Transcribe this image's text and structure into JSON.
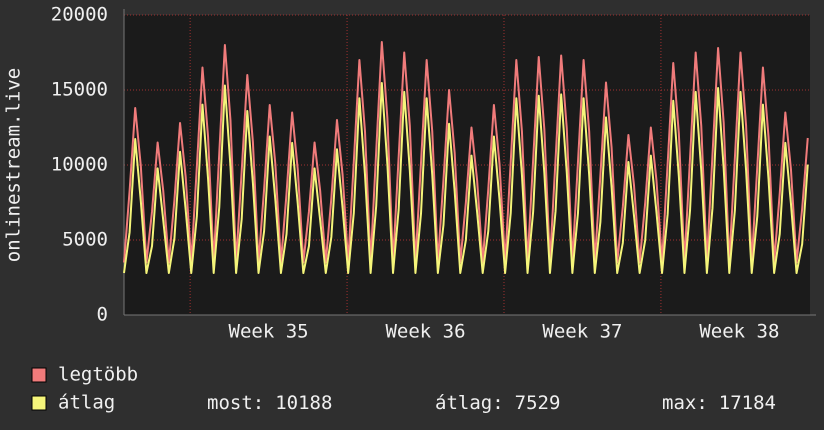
{
  "chart_data": {
    "type": "line",
    "ylabel": "onlinestream.live",
    "xlim": [
      0,
      30.6
    ],
    "ylim": [
      0,
      20000
    ],
    "yticks": [
      0,
      5000,
      10000,
      15000,
      20000
    ],
    "xticks": [
      {
        "value": 2.95,
        "label": "Week 35"
      },
      {
        "value": 9.95,
        "label": "Week 36"
      },
      {
        "value": 16.95,
        "label": "Week 37"
      },
      {
        "value": 23.95,
        "label": "Week 38"
      }
    ],
    "grid": true,
    "x": [
      0,
      0.25,
      0.5,
      0.75,
      1,
      1.25,
      1.5,
      1.75,
      2,
      2.25,
      2.5,
      2.75,
      3,
      3.25,
      3.5,
      3.75,
      4,
      4.25,
      4.5,
      4.75,
      5,
      5.25,
      5.5,
      5.75,
      6,
      6.25,
      6.5,
      6.75,
      7,
      7.25,
      7.5,
      7.75,
      8,
      8.25,
      8.5,
      8.75,
      9,
      9.25,
      9.5,
      9.75,
      10,
      10.25,
      10.5,
      10.75,
      11,
      11.25,
      11.5,
      11.75,
      12,
      12.25,
      12.5,
      12.75,
      13,
      13.25,
      13.5,
      13.75,
      14,
      14.25,
      14.5,
      14.75,
      15,
      15.25,
      15.5,
      15.75,
      16,
      16.25,
      16.5,
      16.75,
      17,
      17.25,
      17.5,
      17.75,
      18,
      18.25,
      18.5,
      18.75,
      19,
      19.25,
      19.5,
      19.75,
      20,
      20.25,
      20.5,
      20.75,
      21,
      21.25,
      21.5,
      21.75,
      22,
      22.25,
      22.5,
      22.75,
      23,
      23.25,
      23.5,
      23.75,
      24,
      24.25,
      24.5,
      24.75,
      25,
      25.25,
      25.5,
      25.75,
      26,
      26.25,
      26.5,
      26.75,
      27,
      27.25,
      27.5,
      27.75,
      28,
      28.25,
      28.5,
      28.75,
      29,
      29.25,
      29.5,
      29.75,
      30,
      30.25,
      30.5
    ],
    "series": [
      {
        "name": "legtöbb",
        "color": "#f07b7b",
        "values": [
          3500,
          8280,
          13800,
          9940,
          3500,
          6900,
          11500,
          8280,
          3500,
          7680,
          12800,
          9216,
          3500,
          9900,
          16500,
          11880,
          3500,
          10800,
          18000,
          12960,
          3500,
          9600,
          16000,
          11520,
          3500,
          8400,
          14000,
          10080,
          3500,
          8100,
          13500,
          9720,
          3500,
          6900,
          11500,
          8280,
          3500,
          7800,
          13000,
          9360,
          3500,
          10200,
          17000,
          12240,
          3500,
          10920,
          18200,
          13104,
          3500,
          10500,
          17500,
          12600,
          3500,
          10200,
          17000,
          12240,
          3500,
          9000,
          15000,
          10800,
          3500,
          7500,
          12500,
          9000,
          3500,
          8400,
          14000,
          10080,
          3500,
          10200,
          17000,
          12240,
          3500,
          10320,
          17200,
          12384,
          3500,
          10380,
          17300,
          12456,
          3500,
          10200,
          17000,
          12240,
          3500,
          9300,
          15500,
          11160,
          3500,
          7200,
          12000,
          8640,
          3500,
          7500,
          12500,
          9000,
          3500,
          10080,
          16800,
          12096,
          3500,
          10500,
          17500,
          12600,
          3500,
          10680,
          17800,
          12816,
          3500,
          10500,
          17500,
          12600,
          3500,
          9900,
          16500,
          11880,
          3500,
          8100,
          13500,
          9720,
          3500,
          7080,
          11800
        ]
      },
      {
        "name": "átlag",
        "color": "#f5f57a",
        "values": [
          2800,
          5520,
          11730,
          7590,
          2800,
          4600,
          9775,
          6325,
          2800,
          5120,
          10880,
          7040,
          2800,
          6600,
          14025,
          9075,
          2800,
          7200,
          15300,
          9900,
          2800,
          6400,
          13600,
          8800,
          2800,
          5600,
          11900,
          7700,
          2800,
          5400,
          11475,
          7425,
          2800,
          4600,
          9775,
          6325,
          2800,
          5200,
          11050,
          7150,
          2800,
          6800,
          14450,
          9350,
          2800,
          7280,
          15470,
          10010,
          2800,
          7000,
          14875,
          9625,
          2800,
          6800,
          14450,
          9350,
          2800,
          6000,
          12750,
          8250,
          2800,
          5000,
          10625,
          6875,
          2800,
          5600,
          11900,
          7700,
          2800,
          6800,
          14450,
          9350,
          2800,
          6880,
          14620,
          9460,
          2800,
          6920,
          14705,
          9515,
          2800,
          6800,
          14450,
          9350,
          2800,
          6200,
          13175,
          8525,
          2800,
          4800,
          10200,
          6600,
          2800,
          5000,
          10625,
          6875,
          2800,
          6720,
          14280,
          9240,
          2800,
          7000,
          14875,
          9625,
          2800,
          7120,
          15130,
          9790,
          2800,
          7000,
          14875,
          9625,
          2800,
          6600,
          14025,
          9075,
          2800,
          5400,
          11475,
          7425,
          2800,
          4720,
          10030
        ]
      }
    ],
    "stats": [
      {
        "label": "most:",
        "value": 10188
      },
      {
        "label": "átlag:",
        "value": 7529
      },
      {
        "label": "max:",
        "value": 17184
      }
    ]
  }
}
